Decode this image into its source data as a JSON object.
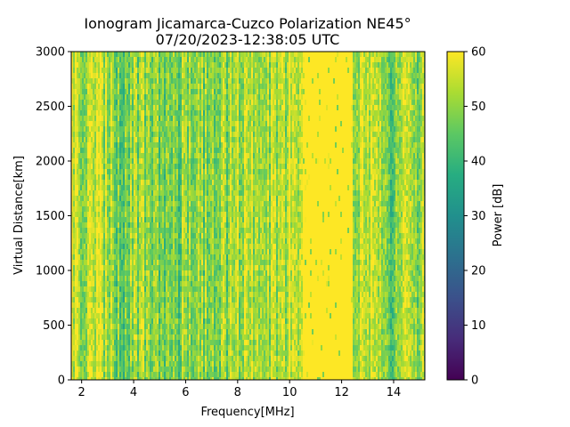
{
  "chart_data": {
    "type": "heatmap",
    "title": "Ionogram Jicamarca-Cuzco Polarization NE45°",
    "subtitle": "07/20/2023-12:38:05 UTC",
    "xlabel": "Frequency[MHz]",
    "ylabel": "Virtual Distance[km]",
    "xlim": [
      1.6,
      15.2
    ],
    "ylim": [
      0,
      3000
    ],
    "xticks": [
      2,
      4,
      6,
      8,
      10,
      12,
      14
    ],
    "yticks": [
      0,
      500,
      1000,
      1500,
      2000,
      2500,
      3000
    ],
    "colorbar": {
      "label": "Power [dB]",
      "range": [
        0,
        60
      ],
      "ticks": [
        0,
        10,
        20,
        30,
        40,
        50,
        60
      ],
      "colormap": "viridis"
    },
    "bands": [
      {
        "from": 1.6,
        "to": 1.8,
        "level": 58
      },
      {
        "from": 1.8,
        "to": 2.5,
        "level": 54
      },
      {
        "from": 2.5,
        "to": 2.8,
        "level": 58
      },
      {
        "from": 2.8,
        "to": 3.2,
        "level": 53
      },
      {
        "from": 3.2,
        "to": 4.0,
        "level": 47
      },
      {
        "from": 4.0,
        "to": 4.7,
        "level": 50
      },
      {
        "from": 4.7,
        "to": 5.8,
        "level": 47
      },
      {
        "from": 5.8,
        "to": 7.0,
        "level": 49
      },
      {
        "from": 7.0,
        "to": 7.7,
        "level": 50
      },
      {
        "from": 7.7,
        "to": 8.8,
        "level": 53
      },
      {
        "from": 8.8,
        "to": 9.9,
        "level": 52
      },
      {
        "from": 9.9,
        "to": 10.5,
        "level": 55
      },
      {
        "from": 10.5,
        "to": 12.4,
        "level": 60
      },
      {
        "from": 12.4,
        "to": 13.6,
        "level": 54
      },
      {
        "from": 13.6,
        "to": 14.2,
        "level": 47
      },
      {
        "from": 14.2,
        "to": 15.2,
        "level": 51
      }
    ],
    "colors": {
      "saturated": "#fde725",
      "axis": "#000000",
      "background": "#ffffff"
    }
  }
}
